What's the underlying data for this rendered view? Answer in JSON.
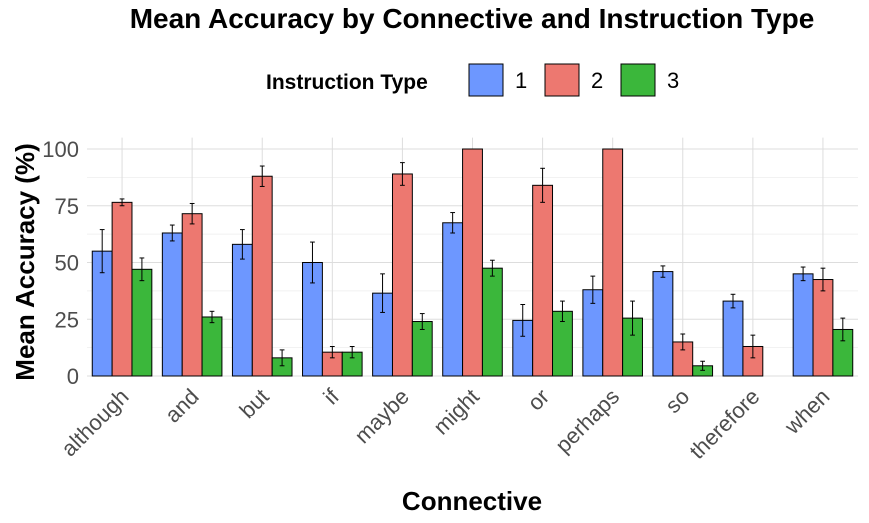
{
  "chart_data": {
    "type": "bar",
    "title": "Mean Accuracy by Connective and Instruction Type",
    "xlabel": "Connective",
    "ylabel": "Mean Accuracy (%)",
    "legend_title": "Instruction Type",
    "legend_position": "top",
    "grid": true,
    "ylim": [
      0,
      105
    ],
    "yticks": [
      0,
      25,
      50,
      75,
      100
    ],
    "categories": [
      "although",
      "and",
      "but",
      "if",
      "maybe",
      "might",
      "or",
      "perhaps",
      "so",
      "therefore",
      "when"
    ],
    "series": [
      {
        "name": "1",
        "color": "#6d97ff",
        "values": [
          55,
          63,
          58,
          50,
          36.5,
          67.5,
          24.5,
          38,
          46,
          33,
          45
        ],
        "error": [
          9.5,
          3.5,
          6.5,
          9,
          8.5,
          4.5,
          7,
          6,
          2.5,
          3,
          3
        ]
      },
      {
        "name": "2",
        "color": "#ed7870",
        "values": [
          76.5,
          71.5,
          88,
          10.5,
          89,
          100,
          84,
          100,
          15,
          13,
          42.5
        ],
        "error": [
          1.5,
          4.5,
          4.5,
          2.5,
          5,
          0,
          7.5,
          0,
          3.5,
          5,
          5
        ]
      },
      {
        "name": "3",
        "color": "#3bb73b",
        "values": [
          47,
          26,
          8,
          10.5,
          24,
          47.5,
          28.5,
          25.5,
          4.5,
          0,
          20.5
        ],
        "error": [
          5,
          2.5,
          3.5,
          2.5,
          3.5,
          3.5,
          4.5,
          7.5,
          2,
          0,
          5
        ]
      }
    ]
  }
}
